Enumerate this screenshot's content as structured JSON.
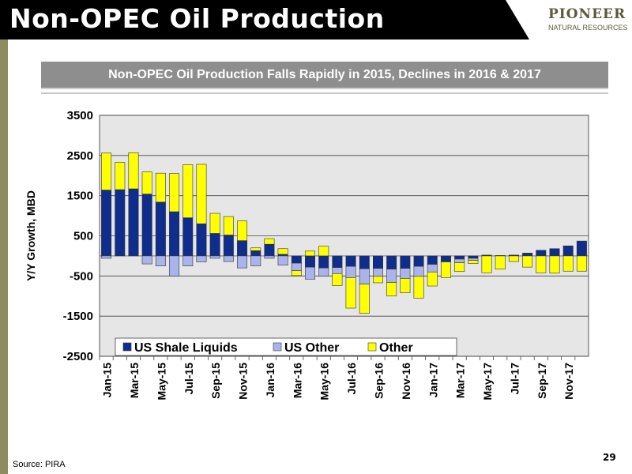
{
  "header": {
    "title": "Non-OPEC Oil Production",
    "logo_line1": "PIONEER",
    "logo_line2": "NATURAL RESOURCES"
  },
  "subtitle": "Non-OPEC Oil Production Falls Rapidly in 2015, Declines in 2016 & 2017",
  "footer": {
    "source": "Source: PIRA",
    "page_number": "29"
  },
  "colors": {
    "us_shale": "#0e2d8c",
    "us_other": "#aab4ec",
    "other": "#ffff00",
    "header_bg": "#000000",
    "subtitle_bg": "#8e8e8e",
    "plot_bg": "#e6e6e6"
  },
  "chart_data": {
    "type": "bar",
    "stacked": true,
    "ylabel": "Y/Y Growth, MBD",
    "ylim": [
      -2500,
      3500
    ],
    "yticks": [
      3500,
      2500,
      1500,
      500,
      -500,
      -1500,
      -2500
    ],
    "grid": true,
    "legend_position": "bottom-inside",
    "categories": [
      "Jan-15",
      "Feb-15",
      "Mar-15",
      "Apr-15",
      "May-15",
      "Jun-15",
      "Jul-15",
      "Aug-15",
      "Sep-15",
      "Oct-15",
      "Nov-15",
      "Dec-15",
      "Jan-16",
      "Feb-16",
      "Mar-16",
      "Apr-16",
      "May-16",
      "Jun-16",
      "Jul-16",
      "Aug-16",
      "Sep-16",
      "Oct-16",
      "Nov-16",
      "Dec-16",
      "Jan-17",
      "Feb-17",
      "Mar-17",
      "Apr-17",
      "May-17",
      "Jun-17",
      "Jul-17",
      "Aug-17",
      "Sep-17",
      "Oct-17",
      "Nov-17",
      "Dec-17"
    ],
    "xtick_labels": [
      "Jan-15",
      "",
      "Mar-15",
      "",
      "May-15",
      "",
      "Jul-15",
      "",
      "Sep-15",
      "",
      "Nov-15",
      "",
      "Jan-16",
      "",
      "Mar-16",
      "",
      "May-16",
      "",
      "Jul-16",
      "",
      "Sep-16",
      "",
      "Nov-16",
      "",
      "Jan-17",
      "",
      "Mar-17",
      "",
      "May-17",
      "",
      "Jul-17",
      "",
      "Sep-17",
      "",
      "Nov-17",
      ""
    ],
    "series": [
      {
        "name": "US Shale Liquids",
        "color": "#0e2d8c",
        "values": [
          1640,
          1650,
          1670,
          1540,
          1340,
          1100,
          950,
          800,
          560,
          520,
          380,
          130,
          290,
          40,
          -180,
          -280,
          -300,
          -290,
          -260,
          -320,
          -310,
          -330,
          -310,
          -260,
          -210,
          -150,
          -80,
          -60,
          20,
          10,
          20,
          70,
          140,
          180,
          250,
          370
        ]
      },
      {
        "name": "US Other",
        "color": "#aab4ec",
        "values": [
          -60,
          0,
          0,
          -200,
          -250,
          -500,
          -250,
          -150,
          -60,
          -140,
          -300,
          -250,
          -60,
          -230,
          -190,
          -300,
          -200,
          -150,
          -280,
          -380,
          -200,
          -330,
          -250,
          -250,
          -190,
          0,
          -90,
          -50,
          0,
          0,
          0,
          0,
          0,
          0,
          0,
          0
        ]
      },
      {
        "name": "Other",
        "color": "#ffff00",
        "values": [
          920,
          680,
          900,
          550,
          720,
          950,
          1320,
          1480,
          500,
          460,
          490,
          70,
          140,
          140,
          -120,
          120,
          240,
          -300,
          -760,
          -730,
          -160,
          -340,
          -360,
          -540,
          -350,
          -390,
          -220,
          -80,
          -420,
          -330,
          -140,
          -280,
          -420,
          -430,
          -380,
          -380
        ]
      }
    ]
  }
}
